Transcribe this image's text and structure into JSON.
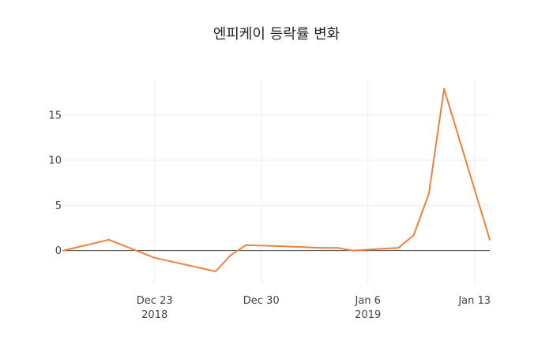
{
  "chart_data": {
    "type": "line",
    "title": "엔피케이 등락률 변화",
    "xlabel": "",
    "ylabel": "",
    "x": [
      "2018-12-17",
      "2018-12-20",
      "2018-12-23",
      "2018-12-27",
      "2018-12-28",
      "2018-12-29",
      "2018-12-31",
      "2019-01-03",
      "2019-01-04",
      "2019-01-05",
      "2019-01-07",
      "2019-01-08",
      "2019-01-09",
      "2019-01-10",
      "2019-01-11",
      "2019-01-14"
    ],
    "series": [
      {
        "values": [
          0.0,
          1.2,
          -0.8,
          -2.3,
          -0.5,
          0.6,
          0.5,
          0.3,
          0.3,
          0.0,
          0.2,
          0.3,
          1.7,
          6.3,
          17.9,
          1.2
        ],
        "color": "#f0803c"
      }
    ],
    "ylim": [
      -3.7,
      19
    ],
    "xlim": [
      "2018-12-17",
      "2019-01-14"
    ],
    "yticks": [
      0,
      5,
      10,
      15
    ],
    "xticks": [
      {
        "date": "2018-12-23",
        "label": "Dec 23",
        "sublabel": "2018"
      },
      {
        "date": "2018-12-30",
        "label": "Dec 30",
        "sublabel": ""
      },
      {
        "date": "2019-01-06",
        "label": "Jan 6",
        "sublabel": "2019"
      },
      {
        "date": "2019-01-13",
        "label": "Jan 13",
        "sublabel": ""
      }
    ],
    "grid": true,
    "legend": "none"
  }
}
